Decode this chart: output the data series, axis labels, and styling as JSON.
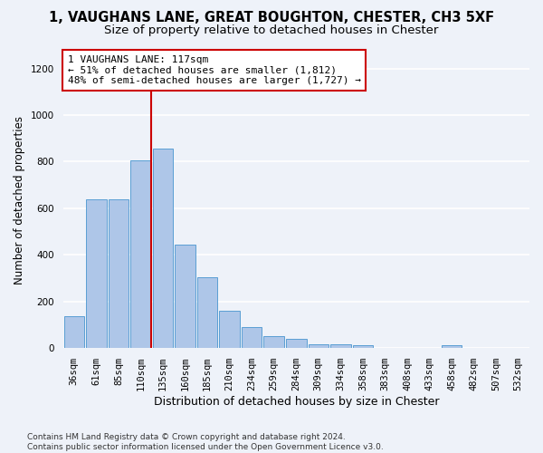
{
  "title_line1": "1, VAUGHANS LANE, GREAT BOUGHTON, CHESTER, CH3 5XF",
  "title_line2": "Size of property relative to detached houses in Chester",
  "xlabel": "Distribution of detached houses by size in Chester",
  "ylabel": "Number of detached properties",
  "categories": [
    "36sqm",
    "61sqm",
    "85sqm",
    "110sqm",
    "135sqm",
    "160sqm",
    "185sqm",
    "210sqm",
    "234sqm",
    "259sqm",
    "284sqm",
    "309sqm",
    "334sqm",
    "358sqm",
    "383sqm",
    "408sqm",
    "433sqm",
    "458sqm",
    "482sqm",
    "507sqm",
    "532sqm"
  ],
  "values": [
    135,
    640,
    640,
    805,
    855,
    445,
    305,
    160,
    90,
    50,
    40,
    15,
    18,
    12,
    0,
    0,
    0,
    12,
    0,
    0,
    0
  ],
  "bar_color": "#aec6e8",
  "bar_edge_color": "#5a9fd4",
  "vline_index": 3,
  "vline_color": "#cc0000",
  "annotation_line1": "1 VAUGHANS LANE: 117sqm",
  "annotation_line2": "← 51% of detached houses are smaller (1,812)",
  "annotation_line3": "48% of semi-detached houses are larger (1,727) →",
  "annotation_box_color": "#ffffff",
  "annotation_box_edge": "#cc0000",
  "ylim": [
    0,
    1270
  ],
  "yticks": [
    0,
    200,
    400,
    600,
    800,
    1000,
    1200
  ],
  "footer_text": "Contains HM Land Registry data © Crown copyright and database right 2024.\nContains public sector information licensed under the Open Government Licence v3.0.",
  "background_color": "#eef2f9",
  "grid_color": "#ffffff",
  "title_fontsize": 10.5,
  "subtitle_fontsize": 9.5,
  "tick_fontsize": 7.5,
  "ylabel_fontsize": 8.5,
  "xlabel_fontsize": 9,
  "annotation_fontsize": 8,
  "footer_fontsize": 6.5
}
